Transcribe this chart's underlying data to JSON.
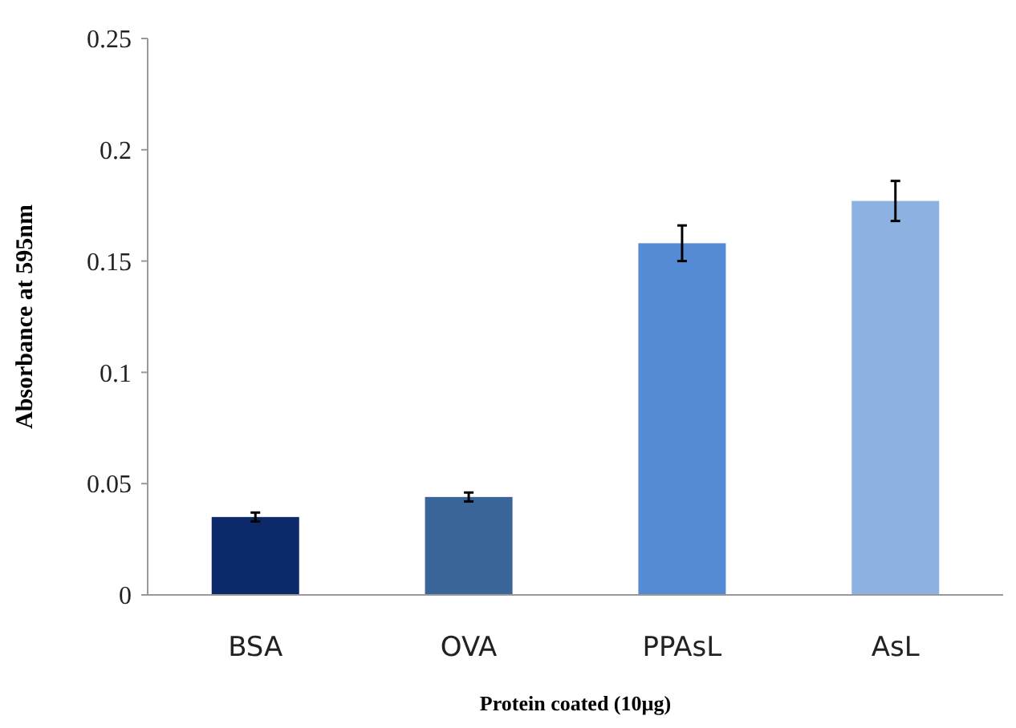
{
  "chart_data": {
    "type": "bar",
    "xlabel": "Protein coated (10µg)",
    "ylabel": "Absorbance at 595nm",
    "categories": [
      "BSA",
      "OVA",
      "PPAsL",
      "AsL"
    ],
    "values": [
      0.035,
      0.044,
      0.158,
      0.177
    ],
    "colors": [
      "#0c2a6a",
      "#3a6599",
      "#548bd4",
      "#8db1e0"
    ],
    "errors": [
      0.002,
      0.002,
      0.008,
      0.009
    ],
    "ylim": [
      0,
      0.25
    ],
    "yticks": [
      0,
      0.05,
      0.1,
      0.15,
      0.2,
      0.25
    ],
    "grid": false
  }
}
